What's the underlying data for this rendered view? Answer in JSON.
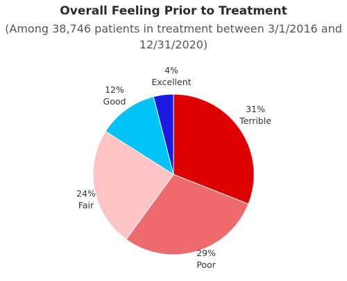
{
  "chart_data": {
    "type": "pie",
    "title": "Overall Feeling Prior to Treatment",
    "subtitle_line1": "(Among 38,746 patients in treatment between 3/1/2016 and",
    "subtitle_line2": "12/31/2020)",
    "slices": [
      {
        "label": "Terrible",
        "percent_label": "31%",
        "value": 31,
        "color": "#dd0000"
      },
      {
        "label": "Poor",
        "percent_label": "29%",
        "value": 29,
        "color": "#ee6a6c"
      },
      {
        "label": "Fair",
        "percent_label": "24%",
        "value": 24,
        "color": "#ffc4c6"
      },
      {
        "label": "Good",
        "percent_label": "12%",
        "value": 12,
        "color": "#00c3f7"
      },
      {
        "label": "Excellent",
        "percent_label": "4%",
        "value": 4,
        "color": "#1a1ae0"
      }
    ]
  }
}
